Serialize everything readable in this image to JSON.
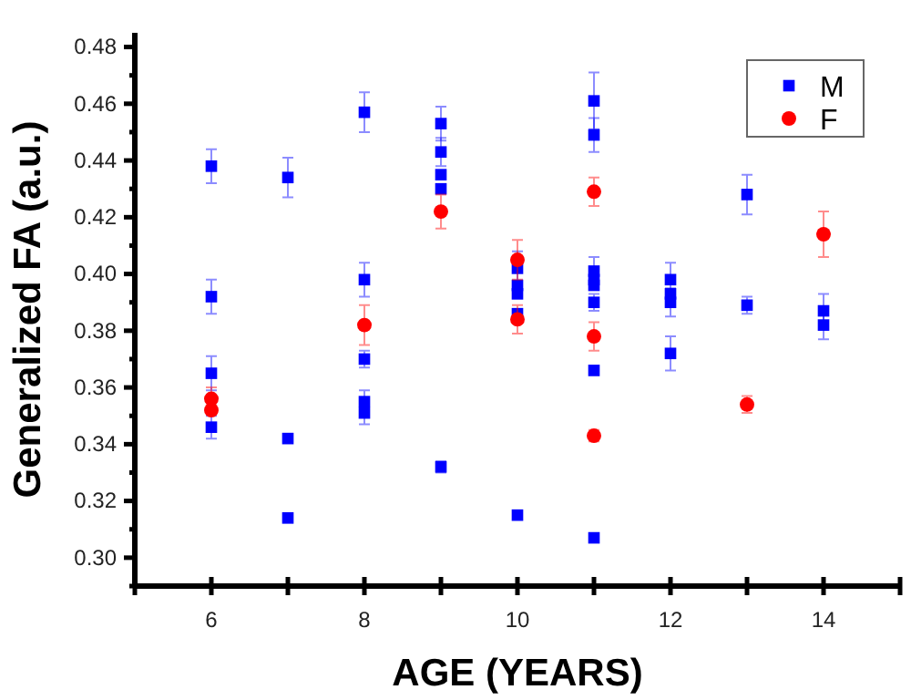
{
  "chart_data": {
    "type": "scatter",
    "xlabel": "AGE (YEARS)",
    "ylabel": "Generalized FA (a.u.)",
    "xlim": [
      5,
      15
    ],
    "ylim": [
      0.29,
      0.485
    ],
    "xticks": [
      {
        "value": 5,
        "label": null
      },
      6,
      {
        "value": 7,
        "label": null
      },
      8,
      {
        "value": 9,
        "label": null
      },
      10,
      {
        "value": 11,
        "label": null
      },
      12,
      {
        "value": 13,
        "label": null
      },
      14,
      {
        "value": 15,
        "label": null
      }
    ],
    "yticks": [
      {
        "value": 0.29,
        "label": null
      },
      {
        "value": 0.3,
        "label": "0.30"
      },
      {
        "value": 0.31,
        "label": null
      },
      0.32,
      {
        "value": 0.33,
        "label": null
      },
      0.34,
      {
        "value": 0.35,
        "label": null
      },
      0.36,
      {
        "value": 0.37,
        "label": null
      },
      0.38,
      {
        "value": 0.39,
        "label": null
      },
      {
        "value": 0.4,
        "label": "0.40"
      },
      {
        "value": 0.41,
        "label": null
      },
      0.42,
      {
        "value": 0.43,
        "label": null
      },
      0.44,
      {
        "value": 0.45,
        "label": null
      },
      0.46,
      {
        "value": 0.47,
        "label": null
      },
      0.48
    ],
    "grid": false,
    "legend": "top right",
    "series": [
      {
        "name": "M",
        "color": "#0000ff",
        "marker": "square",
        "x": [
          6,
          6,
          6,
          6,
          7,
          7,
          7,
          8,
          8,
          8,
          8,
          8,
          9,
          9,
          9,
          9,
          9,
          10,
          10,
          10,
          10,
          10,
          11,
          11,
          11,
          11,
          11,
          11,
          11,
          11,
          12,
          12,
          12,
          12,
          13,
          13,
          14,
          14
        ],
        "values": [
          0.438,
          0.392,
          0.365,
          0.346,
          0.434,
          0.342,
          0.314,
          0.457,
          0.398,
          0.37,
          0.355,
          0.351,
          0.453,
          0.443,
          0.435,
          0.43,
          0.332,
          0.402,
          0.396,
          0.393,
          0.386,
          0.315,
          0.461,
          0.449,
          0.401,
          0.398,
          0.396,
          0.39,
          0.366,
          0.307,
          0.398,
          0.393,
          0.39,
          0.372,
          0.428,
          0.389,
          0.387,
          0.382
        ],
        "errors": [
          0.006,
          0.006,
          0.006,
          0.004,
          0.007,
          null,
          null,
          0.007,
          0.006,
          0.003,
          0.004,
          0.004,
          0.006,
          0.005,
          null,
          null,
          0.002,
          0.006,
          null,
          null,
          null,
          null,
          0.01,
          0.006,
          0.005,
          null,
          null,
          0.003,
          null,
          null,
          0.006,
          null,
          0.005,
          0.006,
          0.007,
          0.003,
          0.006,
          0.005
        ]
      },
      {
        "name": "F",
        "color": "#ff0000",
        "marker": "circle",
        "x": [
          6,
          6,
          8,
          9,
          10,
          10,
          11,
          11,
          11,
          13,
          14
        ],
        "values": [
          0.356,
          0.352,
          0.382,
          0.422,
          0.405,
          0.384,
          0.429,
          0.378,
          0.343,
          0.354,
          0.414
        ],
        "errors": [
          0.004,
          null,
          0.007,
          0.006,
          0.007,
          0.005,
          0.005,
          0.005,
          0.002,
          0.003,
          0.008
        ]
      }
    ]
  }
}
